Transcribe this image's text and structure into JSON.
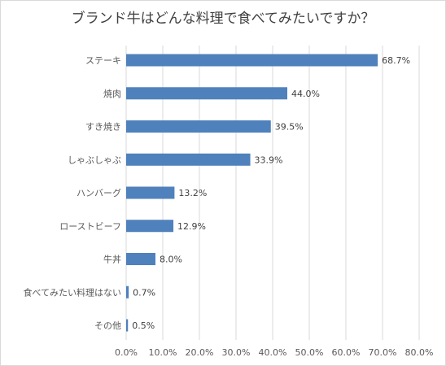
{
  "chart_data": {
    "type": "bar",
    "orientation": "horizontal",
    "title": "ブランド牛はどんな料理で食べてみたいですか？",
    "categories": [
      "ステーキ",
      "焼肉",
      "すき焼き",
      "しゃぶしゃぶ",
      "ハンバーグ",
      "ローストビーフ",
      "牛丼",
      "食べてみたい料理はない",
      "その他"
    ],
    "values": [
      68.7,
      44.0,
      39.5,
      33.9,
      13.2,
      12.9,
      8.0,
      0.7,
      0.5
    ],
    "data_labels": [
      "68.7%",
      "44.0%",
      "39.5%",
      "33.9%",
      "13.2%",
      "12.9%",
      "8.0%",
      "0.7%",
      "0.5%"
    ],
    "xlim": [
      0,
      80
    ],
    "x_ticks": [
      0,
      10,
      20,
      30,
      40,
      50,
      60,
      70,
      80
    ],
    "x_tick_labels": [
      "0.0%",
      "10.0%",
      "20.0%",
      "30.0%",
      "40.0%",
      "50.0%",
      "60.0%",
      "70.0%",
      "80.0%"
    ],
    "grid": "vertical",
    "legend": "none",
    "bar_color": "#4f81bd",
    "grid_color": "#d9d9d9"
  }
}
